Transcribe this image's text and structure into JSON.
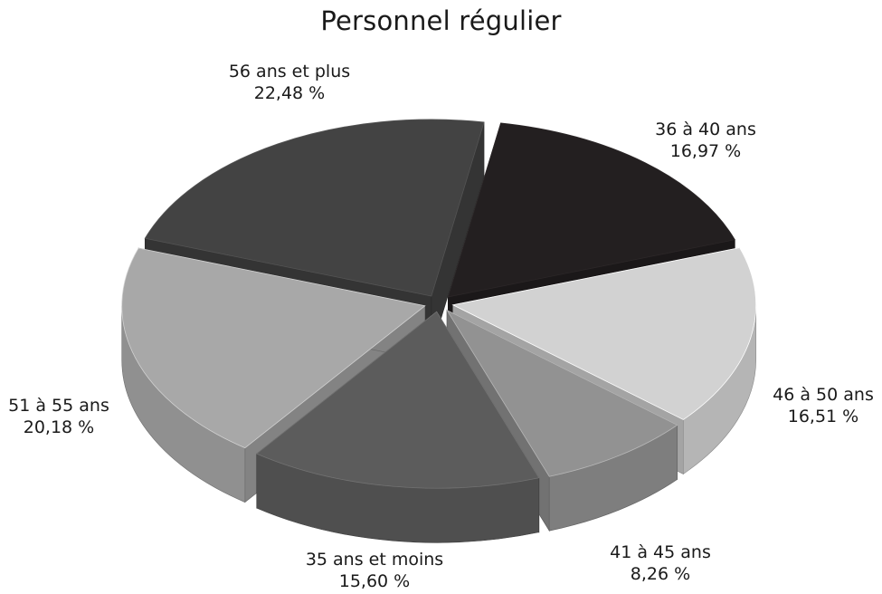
{
  "chart_data": {
    "type": "pie",
    "title": "Personnel régulier",
    "slices": [
      {
        "label": "36 à 40 ans",
        "value_text": "16,97 %",
        "value": 16.97,
        "color": "#231f20"
      },
      {
        "label": "46 à 50 ans",
        "value_text": "16,51 %",
        "value": 16.51,
        "color": "#d2d2d2"
      },
      {
        "label": "41 à 45 ans",
        "value_text": "8,26 %",
        "value": 8.26,
        "color": "#929292"
      },
      {
        "label": "35 ans et moins",
        "value_text": "15,60 %",
        "value": 15.6,
        "color": "#5c5c5c"
      },
      {
        "label": "51 à 55 ans",
        "value_text": "20,18 %",
        "value": 20.18,
        "color": "#a8a8a8"
      },
      {
        "label": "56 ans et plus",
        "value_text": "22,48 %",
        "value": 22.48,
        "color": "#434343"
      }
    ]
  }
}
